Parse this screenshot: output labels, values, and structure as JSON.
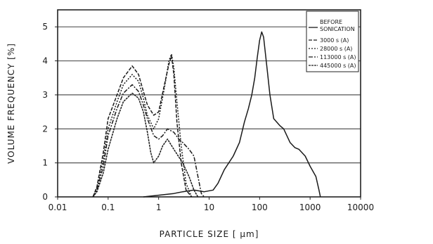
{
  "chart_data": {
    "type": "line",
    "title": "",
    "xlabel": "PARTICLE SIZE [ μm]",
    "ylabel": "VOLUME FREQUENCY [%]",
    "xscale": "log",
    "xlim": [
      0.01,
      10000
    ],
    "ylim": [
      0,
      5.5
    ],
    "xticks": [
      0.01,
      0.1,
      1,
      10,
      100,
      1000,
      10000
    ],
    "xtick_labels": [
      "0.01",
      "0.1",
      "1",
      "10",
      "100",
      "1000",
      "10000"
    ],
    "yticks": [
      0,
      1,
      2,
      3,
      4,
      5
    ],
    "ytick_labels": [
      "0",
      "1",
      "2",
      "3",
      "4",
      "5"
    ],
    "grid": "horizontal",
    "legend_position": "top-right",
    "series": [
      {
        "name": "BEFORE SONICATION",
        "points": [
          [
            0.5,
            0.0
          ],
          [
            1,
            0.05
          ],
          [
            2,
            0.1
          ],
          [
            3,
            0.15
          ],
          [
            5,
            0.2
          ],
          [
            8,
            0.15
          ],
          [
            12,
            0.2
          ],
          [
            15,
            0.4
          ],
          [
            20,
            0.8
          ],
          [
            30,
            1.2
          ],
          [
            40,
            1.6
          ],
          [
            50,
            2.2
          ],
          [
            60,
            2.6
          ],
          [
            70,
            3.0
          ],
          [
            80,
            3.5
          ],
          [
            90,
            4.1
          ],
          [
            100,
            4.6
          ],
          [
            110,
            4.85
          ],
          [
            120,
            4.7
          ],
          [
            140,
            3.8
          ],
          [
            160,
            3.0
          ],
          [
            190,
            2.3
          ],
          [
            250,
            2.1
          ],
          [
            300,
            2.0
          ],
          [
            400,
            1.6
          ],
          [
            500,
            1.45
          ],
          [
            600,
            1.4
          ],
          [
            800,
            1.2
          ],
          [
            1000,
            0.9
          ],
          [
            1300,
            0.6
          ],
          [
            1500,
            0.2
          ],
          [
            1600,
            0.0
          ]
        ]
      },
      {
        "name": "3000 s (A)",
        "points": [
          [
            0.05,
            0.0
          ],
          [
            0.06,
            0.3
          ],
          [
            0.08,
            1.3
          ],
          [
            0.1,
            2.3
          ],
          [
            0.15,
            3.0
          ],
          [
            0.2,
            3.5
          ],
          [
            0.3,
            3.85
          ],
          [
            0.4,
            3.6
          ],
          [
            0.5,
            3.1
          ],
          [
            0.6,
            2.7
          ],
          [
            0.8,
            2.4
          ],
          [
            1.0,
            2.5
          ],
          [
            1.3,
            3.3
          ],
          [
            1.6,
            3.9
          ],
          [
            1.8,
            4.15
          ],
          [
            2.0,
            3.6
          ],
          [
            2.3,
            2.2
          ],
          [
            2.8,
            1.0
          ],
          [
            3.5,
            0.2
          ],
          [
            4.5,
            0.0
          ]
        ]
      },
      {
        "name": "28000 s (A)",
        "points": [
          [
            0.05,
            0.0
          ],
          [
            0.06,
            0.25
          ],
          [
            0.08,
            1.1
          ],
          [
            0.1,
            2.0
          ],
          [
            0.15,
            2.8
          ],
          [
            0.2,
            3.3
          ],
          [
            0.3,
            3.6
          ],
          [
            0.4,
            3.4
          ],
          [
            0.5,
            2.9
          ],
          [
            0.6,
            2.4
          ],
          [
            0.8,
            2.0
          ],
          [
            1.0,
            2.3
          ],
          [
            1.3,
            3.2
          ],
          [
            1.6,
            4.0
          ],
          [
            1.8,
            4.2
          ],
          [
            2.0,
            3.8
          ],
          [
            2.3,
            2.8
          ],
          [
            2.8,
            1.5
          ],
          [
            3.5,
            0.4
          ],
          [
            4.5,
            0.0
          ]
        ]
      },
      {
        "name": "113000 s (A)",
        "points": [
          [
            0.05,
            0.0
          ],
          [
            0.06,
            0.2
          ],
          [
            0.08,
            0.9
          ],
          [
            0.1,
            1.8
          ],
          [
            0.15,
            2.6
          ],
          [
            0.2,
            3.05
          ],
          [
            0.3,
            3.3
          ],
          [
            0.4,
            3.1
          ],
          [
            0.5,
            2.7
          ],
          [
            0.6,
            2.3
          ],
          [
            0.8,
            1.8
          ],
          [
            1.0,
            1.7
          ],
          [
            1.2,
            1.8
          ],
          [
            1.5,
            2.0
          ],
          [
            2.0,
            1.9
          ],
          [
            2.5,
            1.7
          ],
          [
            3.0,
            1.6
          ],
          [
            4.0,
            1.4
          ],
          [
            5.0,
            1.2
          ],
          [
            6.0,
            0.6
          ],
          [
            7.0,
            0.1
          ],
          [
            8.0,
            0.0
          ]
        ]
      },
      {
        "name": "445000 s (A)",
        "points": [
          [
            0.05,
            0.0
          ],
          [
            0.06,
            0.15
          ],
          [
            0.08,
            0.7
          ],
          [
            0.1,
            1.4
          ],
          [
            0.15,
            2.3
          ],
          [
            0.2,
            2.8
          ],
          [
            0.3,
            3.05
          ],
          [
            0.4,
            2.9
          ],
          [
            0.5,
            2.5
          ],
          [
            0.6,
            1.9
          ],
          [
            0.7,
            1.3
          ],
          [
            0.8,
            1.0
          ],
          [
            1.0,
            1.2
          ],
          [
            1.2,
            1.5
          ],
          [
            1.5,
            1.7
          ],
          [
            2.0,
            1.4
          ],
          [
            3.0,
            1.0
          ],
          [
            4.0,
            0.6
          ],
          [
            5.0,
            0.2
          ],
          [
            6.0,
            0.0
          ]
        ]
      }
    ]
  }
}
